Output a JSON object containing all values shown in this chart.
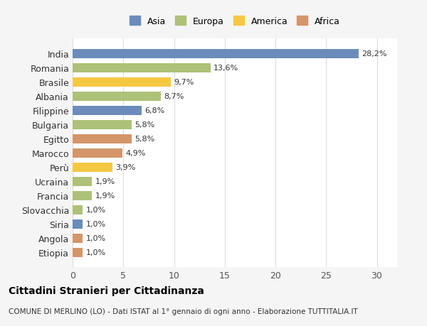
{
  "countries": [
    "India",
    "Romania",
    "Brasile",
    "Albania",
    "Filippine",
    "Bulgaria",
    "Egitto",
    "Marocco",
    "Perù",
    "Ucraina",
    "Francia",
    "Slovacchia",
    "Siria",
    "Angola",
    "Etiopia"
  ],
  "values": [
    28.2,
    13.6,
    9.7,
    8.7,
    6.8,
    5.8,
    5.8,
    4.9,
    3.9,
    1.9,
    1.9,
    1.0,
    1.0,
    1.0,
    1.0
  ],
  "labels": [
    "28,2%",
    "13,6%",
    "9,7%",
    "8,7%",
    "6,8%",
    "5,8%",
    "5,8%",
    "4,9%",
    "3,9%",
    "1,9%",
    "1,9%",
    "1,0%",
    "1,0%",
    "1,0%",
    "1,0%"
  ],
  "colors": [
    "#6b8cba",
    "#adc178",
    "#f5c842",
    "#adc178",
    "#6b8cba",
    "#adc178",
    "#d4956a",
    "#d4956a",
    "#f5c842",
    "#adc178",
    "#adc178",
    "#adc178",
    "#6b8cba",
    "#d4956a",
    "#d4956a"
  ],
  "legend_labels": [
    "Asia",
    "Europa",
    "America",
    "Africa"
  ],
  "legend_colors": [
    "#6b8cba",
    "#adc178",
    "#f5c842",
    "#d4956a"
  ],
  "title": "Cittadini Stranieri per Cittadinanza",
  "subtitle": "COMUNE DI MERLINO (LO) - Dati ISTAT al 1° gennaio di ogni anno - Elaborazione TUTTITALIA.IT",
  "xlim": [
    0,
    32
  ],
  "xticks": [
    0,
    5,
    10,
    15,
    20,
    25,
    30
  ],
  "bg_color": "#f5f5f5",
  "plot_bg": "#ffffff",
  "grid_color": "#dddddd"
}
